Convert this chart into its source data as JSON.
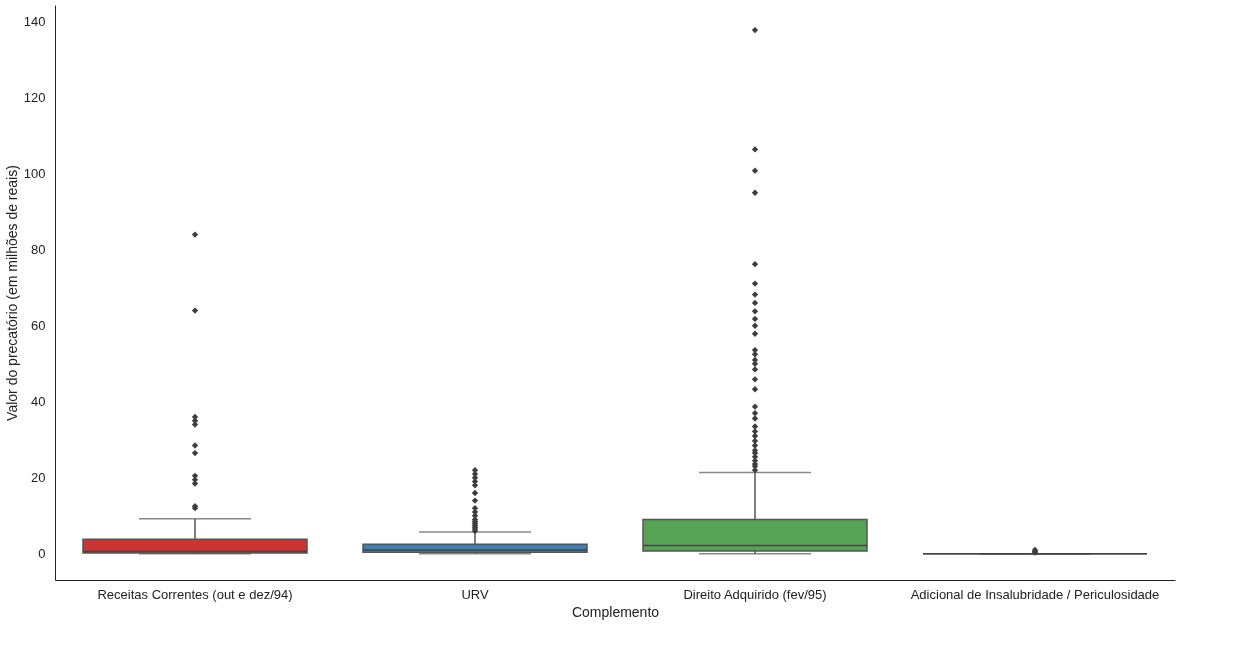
{
  "chart_data": {
    "type": "box",
    "xlabel": "Complemento",
    "ylabel": "Valor do precatório (em milhões de reais)",
    "categories": [
      "Receitas Correntes (out e dez/94)",
      "URV",
      "Direito Adquirido (fev/95)",
      "Adicional de Insalubridade / Periculosidade"
    ],
    "colors": [
      "#cc3333",
      "#3f7fb5",
      "#56a355",
      "#555555"
    ],
    "boxes": [
      {
        "low": 0,
        "q1": 0.2,
        "median": 0.6,
        "q3": 3.8,
        "high": 9.2,
        "outliers": [
          12,
          12.5,
          18.5,
          19.5,
          20.5,
          26.5,
          28.5,
          34,
          35,
          36,
          64,
          84
        ]
      },
      {
        "low": 0,
        "q1": 0.4,
        "median": 1.0,
        "q3": 2.5,
        "high": 5.7,
        "outliers": [
          6,
          6.5,
          7,
          7.5,
          8,
          8.5,
          9,
          10,
          11,
          12,
          14,
          16,
          18,
          19,
          20,
          21,
          22
        ]
      },
      {
        "low": 0,
        "q1": 0.7,
        "median": 2.2,
        "q3": 9.05,
        "high": 21.4,
        "outliers": [
          22,
          23,
          23.6,
          24.5,
          25.5,
          26.5,
          27.2,
          28.5,
          29.7,
          31,
          32.2,
          33.5,
          35.6,
          37,
          38.7,
          43.3,
          45.9,
          48.5,
          50,
          51,
          52.5,
          53.6,
          57.9,
          60,
          61.8,
          63.8,
          66,
          68.2,
          71.1,
          76.2,
          95,
          100.8,
          106.4,
          137.8
        ]
      },
      {
        "low": 0,
        "q1": 0,
        "median": 0,
        "q3": 0,
        "high": 0,
        "outliers": [
          0.3,
          0.6,
          1.0
        ]
      }
    ],
    "ylim": [
      -6.9,
      144.4
    ],
    "yticks": [
      0,
      20,
      40,
      60,
      80,
      100,
      120,
      140
    ],
    "grid": false
  }
}
